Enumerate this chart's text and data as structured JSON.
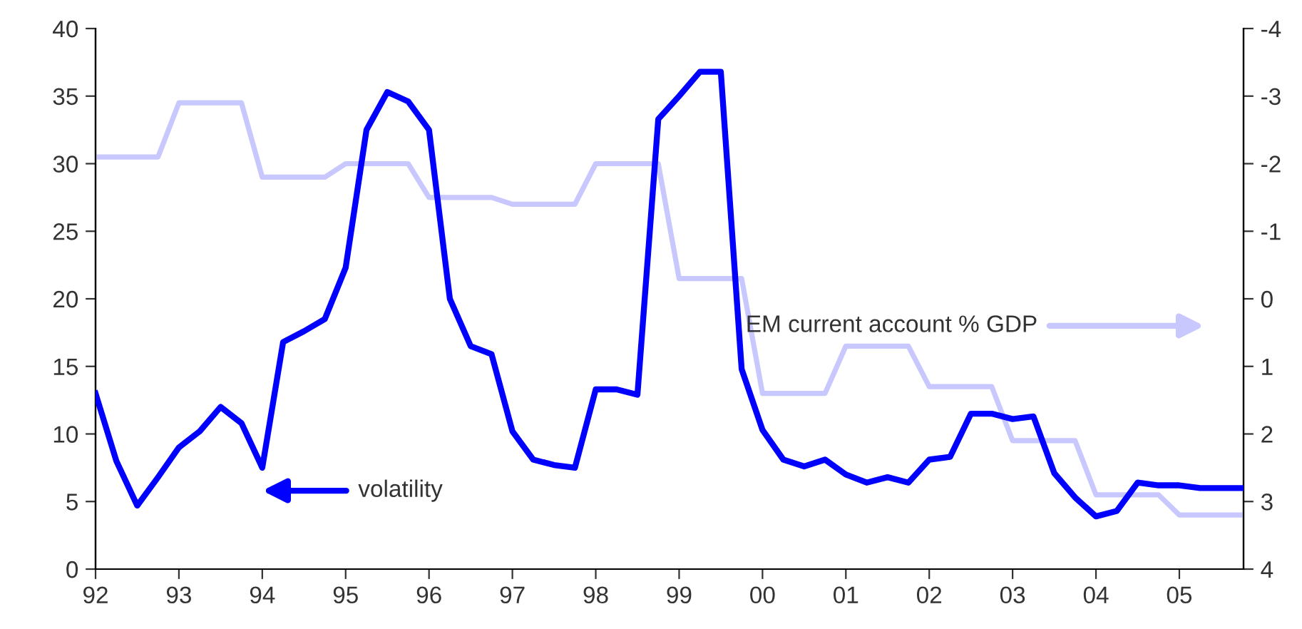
{
  "chart_data": {
    "type": "line",
    "x": [
      1992,
      1992.25,
      1992.5,
      1992.75,
      1993,
      1993.25,
      1993.5,
      1993.75,
      1994,
      1994.25,
      1994.5,
      1994.75,
      1995,
      1995.25,
      1995.5,
      1995.75,
      1996,
      1996.25,
      1996.5,
      1996.75,
      1997,
      1997.25,
      1997.5,
      1997.75,
      1998,
      1998.25,
      1998.5,
      1998.75,
      1999,
      1999.25,
      1999.5,
      1999.75,
      2000,
      2000.25,
      2000.5,
      2000.75,
      2001,
      2001.25,
      2001.5,
      2001.75,
      2002,
      2002.25,
      2002.5,
      2002.75,
      2003,
      2003.25,
      2003.5,
      2003.75,
      2004,
      2004.25,
      2004.5,
      2004.75,
      2005,
      2005.25,
      2005.5,
      2005.75
    ],
    "series": [
      {
        "name": "volatility",
        "color": "#0000ff",
        "axis": "y",
        "values": [
          13,
          8,
          4.7,
          6.8,
          9,
          10.2,
          12,
          10.8,
          7.5,
          16.8,
          17.6,
          18.5,
          22.3,
          32.5,
          35.3,
          34.6,
          32.5,
          20,
          16.5,
          15.9,
          10.2,
          8.1,
          7.7,
          7.5,
          13.3,
          13.3,
          12.9,
          33.3,
          35,
          36.8,
          36.8,
          14.8,
          10.3,
          8.1,
          7.6,
          8.1,
          7,
          6.4,
          6.8,
          6.4,
          8.1,
          8.3,
          11.5,
          11.5,
          11.1,
          11.3,
          7.1,
          5.3,
          3.9,
          4.3,
          6.4,
          6.2,
          6.2,
          6,
          6,
          6
        ]
      },
      {
        "name": "EM current account % GDP",
        "color": "#c8c8ff",
        "axis": "y2",
        "values": [
          -2.1,
          -2.1,
          -2.1,
          -2.1,
          -2.9,
          -2.9,
          -2.9,
          -2.9,
          -1.8,
          -1.8,
          -1.8,
          -1.8,
          -2,
          -2,
          -2,
          -2,
          -1.5,
          -1.5,
          -1.5,
          -1.5,
          -1.4,
          -1.4,
          -1.4,
          -1.4,
          -2,
          -2,
          -2,
          -2,
          -0.3,
          -0.3,
          -0.3,
          -0.3,
          1.4,
          1.4,
          1.4,
          1.4,
          0.7,
          0.7,
          0.7,
          0.7,
          1.3,
          1.3,
          1.3,
          1.3,
          2.1,
          2.1,
          2.1,
          2.1,
          2.9,
          2.9,
          2.9,
          2.9,
          3.2,
          3.2,
          3.2,
          3.2
        ]
      }
    ],
    "xlim": [
      1992,
      2005.77
    ],
    "xticks": [
      {
        "value": 1992,
        "label": "92"
      },
      {
        "value": 1993,
        "label": "93"
      },
      {
        "value": 1994,
        "label": "94"
      },
      {
        "value": 1995,
        "label": "95"
      },
      {
        "value": 1996,
        "label": "96"
      },
      {
        "value": 1997,
        "label": "97"
      },
      {
        "value": 1998,
        "label": "98"
      },
      {
        "value": 1999,
        "label": "99"
      },
      {
        "value": 2000,
        "label": "00"
      },
      {
        "value": 2001,
        "label": "01"
      },
      {
        "value": 2002,
        "label": "02"
      },
      {
        "value": 2003,
        "label": "03"
      },
      {
        "value": 2004,
        "label": "04"
      },
      {
        "value": 2005,
        "label": "05"
      }
    ],
    "ylim": [
      0,
      40
    ],
    "yticks": [
      0,
      5,
      10,
      15,
      20,
      25,
      30,
      35,
      40
    ],
    "y2lim": [
      4,
      -4
    ],
    "y2ticks": [
      -4,
      -3,
      -2,
      -1,
      0,
      1,
      2,
      3,
      4
    ],
    "grid": false,
    "legend": "bottom left",
    "marker": "none",
    "line_style": "solid"
  }
}
